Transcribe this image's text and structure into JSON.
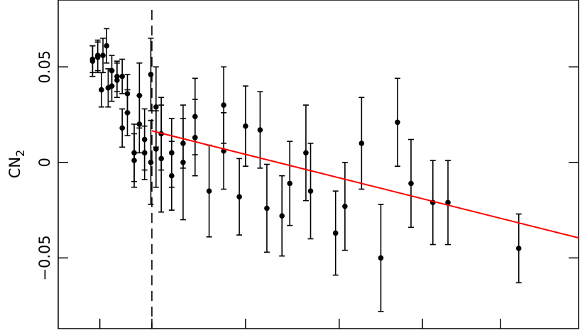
{
  "chart_data": {
    "type": "scatter",
    "title": "",
    "xlabel": "",
    "ylabel": "CN",
    "ylabel_subscript": "2",
    "xlim": [
      0,
      1
    ],
    "ylim": [
      -0.087,
      0.085
    ],
    "yticks": [
      -0.05,
      0,
      0.05
    ],
    "ytick_labels": [
      "−0.05",
      "0",
      "0.05"
    ],
    "xticks": [
      0.08,
      0.18,
      0.36,
      0.54,
      0.7,
      0.85
    ],
    "grid": false,
    "dashed_vline_x": 0.18,
    "fit_line": {
      "x1": 0.18,
      "y1": 0.0165,
      "x2": 1.0,
      "y2": -0.0395,
      "color": "#ff0000"
    },
    "points": [
      {
        "x": 0.066,
        "y": 0.053,
        "err": 0.008
      },
      {
        "x": 0.066,
        "y": 0.054,
        "err": 0.007
      },
      {
        "x": 0.076,
        "y": 0.055,
        "err": 0.008
      },
      {
        "x": 0.076,
        "y": 0.056,
        "err": 0.008
      },
      {
        "x": 0.083,
        "y": 0.038,
        "err": 0.009
      },
      {
        "x": 0.086,
        "y": 0.056,
        "err": 0.009
      },
      {
        "x": 0.093,
        "y": 0.061,
        "err": 0.009
      },
      {
        "x": 0.096,
        "y": 0.039,
        "err": 0.01
      },
      {
        "x": 0.103,
        "y": 0.048,
        "err": 0.008
      },
      {
        "x": 0.103,
        "y": 0.04,
        "err": 0.008
      },
      {
        "x": 0.113,
        "y": 0.045,
        "err": 0.008
      },
      {
        "x": 0.113,
        "y": 0.043,
        "err": 0.009
      },
      {
        "x": 0.123,
        "y": 0.045,
        "err": 0.009
      },
      {
        "x": 0.123,
        "y": 0.018,
        "err": 0.01
      },
      {
        "x": 0.133,
        "y": 0.036,
        "err": 0.01
      },
      {
        "x": 0.133,
        "y": 0.026,
        "err": 0.012
      },
      {
        "x": 0.146,
        "y": 0.005,
        "err": 0.015
      },
      {
        "x": 0.146,
        "y": 0.001,
        "err": 0.014
      },
      {
        "x": 0.156,
        "y": 0.02,
        "err": 0.015
      },
      {
        "x": 0.156,
        "y": 0.035,
        "err": 0.017
      },
      {
        "x": 0.166,
        "y": 0.005,
        "err": 0.014
      },
      {
        "x": 0.166,
        "y": 0.012,
        "err": 0.016
      },
      {
        "x": 0.178,
        "y": 0.046,
        "err": 0.019
      },
      {
        "x": 0.178,
        "y": 0.0,
        "err": 0.022
      },
      {
        "x": 0.188,
        "y": 0.029,
        "err": 0.021
      },
      {
        "x": 0.188,
        "y": 0.007,
        "err": 0.02
      },
      {
        "x": 0.198,
        "y": 0.015,
        "err": 0.019
      },
      {
        "x": 0.198,
        "y": 0.002,
        "err": 0.028
      },
      {
        "x": 0.218,
        "y": 0.005,
        "err": 0.018
      },
      {
        "x": 0.218,
        "y": -0.007,
        "err": 0.018
      },
      {
        "x": 0.24,
        "y": 0.01,
        "err": 0.013
      },
      {
        "x": 0.24,
        "y": 0.0,
        "err": 0.03
      },
      {
        "x": 0.263,
        "y": 0.024,
        "err": 0.02
      },
      {
        "x": 0.263,
        "y": 0.013,
        "err": 0.02
      },
      {
        "x": 0.29,
        "y": -0.015,
        "err": 0.024
      },
      {
        "x": 0.318,
        "y": 0.03,
        "err": 0.02
      },
      {
        "x": 0.318,
        "y": 0.006,
        "err": 0.02
      },
      {
        "x": 0.348,
        "y": -0.018,
        "err": 0.02
      },
      {
        "x": 0.36,
        "y": 0.019,
        "err": 0.021
      },
      {
        "x": 0.388,
        "y": 0.017,
        "err": 0.02
      },
      {
        "x": 0.401,
        "y": -0.024,
        "err": 0.023
      },
      {
        "x": 0.43,
        "y": -0.028,
        "err": 0.021
      },
      {
        "x": 0.445,
        "y": -0.011,
        "err": 0.022
      },
      {
        "x": 0.476,
        "y": 0.005,
        "err": 0.025
      },
      {
        "x": 0.485,
        "y": -0.015,
        "err": 0.025
      },
      {
        "x": 0.533,
        "y": -0.037,
        "err": 0.022
      },
      {
        "x": 0.551,
        "y": -0.023,
        "err": 0.023
      },
      {
        "x": 0.583,
        "y": 0.01,
        "err": 0.024
      },
      {
        "x": 0.62,
        "y": -0.05,
        "err": 0.028
      },
      {
        "x": 0.652,
        "y": 0.021,
        "err": 0.023
      },
      {
        "x": 0.678,
        "y": -0.011,
        "err": 0.023
      },
      {
        "x": 0.72,
        "y": -0.021,
        "err": 0.022
      },
      {
        "x": 0.749,
        "y": -0.021,
        "err": 0.022
      },
      {
        "x": 0.885,
        "y": -0.045,
        "err": 0.018
      }
    ]
  }
}
